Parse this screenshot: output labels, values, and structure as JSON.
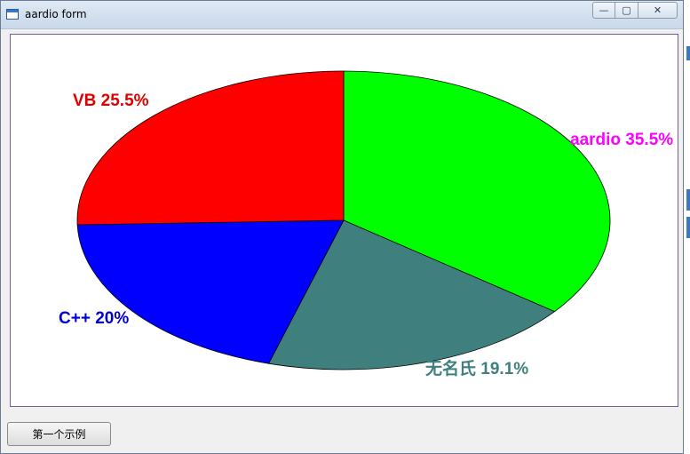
{
  "window": {
    "title": "aardio form"
  },
  "caption": {
    "minimize_glyph": "—",
    "maximize_glyph": "▢",
    "close_glyph": "✕"
  },
  "chart_data": {
    "type": "pie",
    "title": "",
    "slices": [
      {
        "label": "aardio",
        "value": 35.5,
        "display": "aardio 35.5%",
        "color": "#00ff00",
        "label_color": "#ff00ff"
      },
      {
        "label": "无名氏",
        "value": 19.1,
        "display": "无名氏 19.1%",
        "color": "#3f807f",
        "label_color": "#3f807f"
      },
      {
        "label": "C++",
        "value": 20,
        "display": "C++ 20%",
        "color": "#0000ff",
        "label_color": "#0000d0"
      },
      {
        "label": "VB",
        "value": 25.5,
        "display": "VB 25.5%",
        "color": "#ff0000",
        "label_color": "#e00000"
      }
    ],
    "start": "12 o'clock",
    "direction": "clockwise"
  },
  "buttons": {
    "example_label": "第一个示例"
  }
}
